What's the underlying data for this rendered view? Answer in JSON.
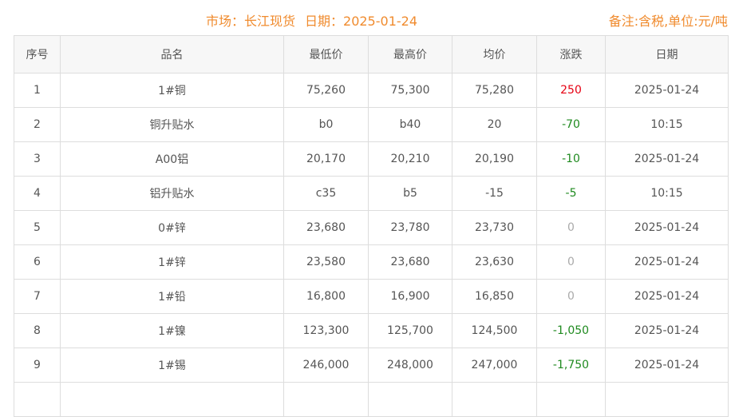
{
  "header": {
    "market": "市场：长江现货",
    "date": "日期：2025-01-24",
    "note": "备注:含税,单位:元/吨"
  },
  "colors": {
    "accent": "#f08b2e",
    "up": "#e60012",
    "down": "#1f8a1f",
    "flat": "#aaaaaa"
  },
  "columns": [
    "序号",
    "品名",
    "最低价",
    "最高价",
    "均价",
    "涨跌",
    "日期"
  ],
  "rows": [
    [
      "1",
      "1#铜",
      "75,260",
      "75,300",
      "75,280",
      "250",
      "2025-01-24"
    ],
    [
      "2",
      "铜升贴水",
      "b0",
      "b40",
      "20",
      "-70",
      "10:15"
    ],
    [
      "3",
      "A00铝",
      "20,170",
      "20,210",
      "20,190",
      "-10",
      "2025-01-24"
    ],
    [
      "4",
      "铝升贴水",
      "c35",
      "b5",
      "-15",
      "-5",
      "10:15"
    ],
    [
      "5",
      "0#锌",
      "23,680",
      "23,780",
      "23,730",
      "0",
      "2025-01-24"
    ],
    [
      "6",
      "1#锌",
      "23,580",
      "23,680",
      "23,630",
      "0",
      "2025-01-24"
    ],
    [
      "7",
      "1#铅",
      "16,800",
      "16,900",
      "16,850",
      "0",
      "2025-01-24"
    ],
    [
      "8",
      "1#镍",
      "123,300",
      "125,700",
      "124,500",
      "-1,050",
      "2025-01-24"
    ],
    [
      "9",
      "1#锡",
      "246,000",
      "248,000",
      "247,000",
      "-1,750",
      "2025-01-24"
    ]
  ]
}
